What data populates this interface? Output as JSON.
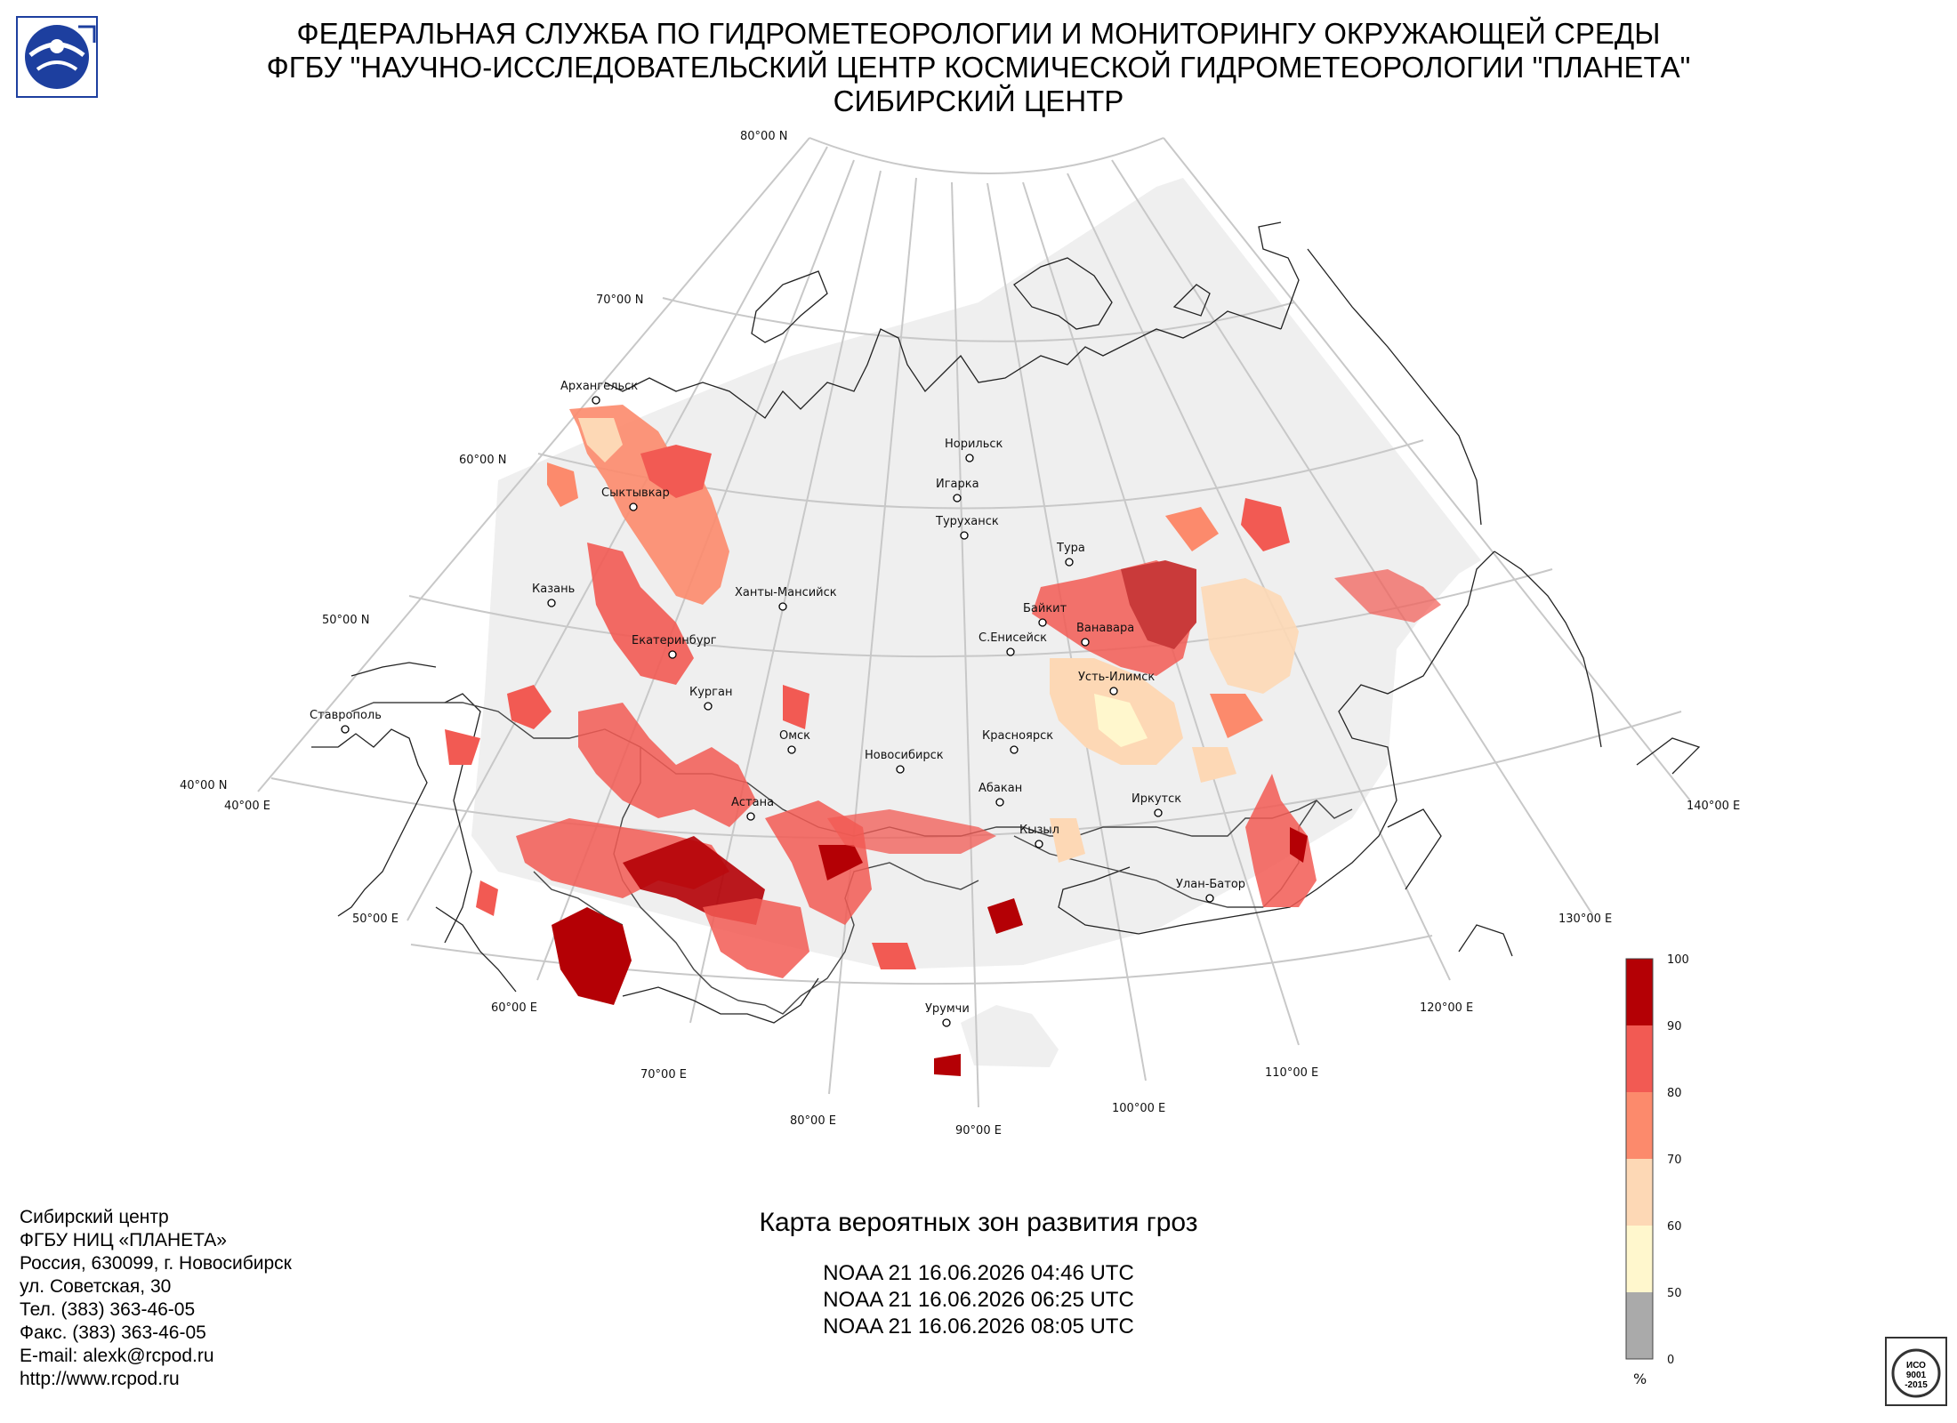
{
  "header": {
    "line1": "ФЕДЕРАЛЬНАЯ СЛУЖБА ПО ГИДРОМЕТЕОРОЛОГИИ И МОНИТОРИНГУ ОКРУЖАЮЩЕЙ СРЕДЫ",
    "line2": "ФГБУ \"НАУЧНО-ИССЛЕДОВАТЕЛЬСКИЙ ЦЕНТР КОСМИЧЕСКОЙ ГИДРОМЕТЕОРОЛОГИИ \"ПЛАНЕТА\"",
    "line3": "СИБИРСКИЙ ЦЕНТР"
  },
  "map": {
    "lat_labels": [
      "80°00 N",
      "70°00 N",
      "60°00 N",
      "50°00 N",
      "40°00 N"
    ],
    "lon_labels": [
      "40°00 E",
      "50°00 E",
      "60°00 E",
      "70°00 E",
      "80°00 E",
      "90°00 E",
      "100°00 E",
      "110°00 E",
      "120°00 E",
      "130°00 E",
      "140°00 E"
    ],
    "cities": [
      "Архангельск",
      "Сыктывкар",
      "Казань",
      "Ханты-Мансийск",
      "Екатеринбург",
      "Курган",
      "Ставрополь",
      "Омск",
      "Астана",
      "Новосибирск",
      "Норильск",
      "Игарка",
      "Туруханск",
      "Тура",
      "Байкит",
      "Ванавара",
      "С.Енисейск",
      "Усть-Илимск",
      "Красноярск",
      "Абакан",
      "Иркутск",
      "Кызыл",
      "Улан-Батор",
      "Урумчи"
    ]
  },
  "legend": {
    "ticks": [
      "100",
      "90",
      "80",
      "70",
      "60",
      "50",
      "0"
    ],
    "unit": "%",
    "colors": [
      "#b40005",
      "#f25a53",
      "#fc8a6c",
      "#fdd8b5",
      "#fff7cd",
      "#aaaaaa"
    ]
  },
  "footer": {
    "lines": [
      "Сибирский центр",
      "ФГБУ НИЦ «ПЛАНЕТА»",
      "Россия, 630099, г. Новосибирск",
      "ул. Советская, 30",
      "Тел. (383) 363-46-05",
      "Факс. (383) 363-46-05",
      "E-mail: alexk@rcpod.ru",
      "http://www.rcpod.ru"
    ],
    "title": "Карта вероятных зон развития гроз",
    "passes": [
      "NOAA 21 16.06.2026  04:46 UTC",
      "NOAA 21 16.06.2026  06:25 UTC",
      "NOAA 21 16.06.2026  08:05 UTC"
    ]
  },
  "iso": {
    "lines": [
      "ИСО",
      "9001",
      "-2015"
    ]
  }
}
